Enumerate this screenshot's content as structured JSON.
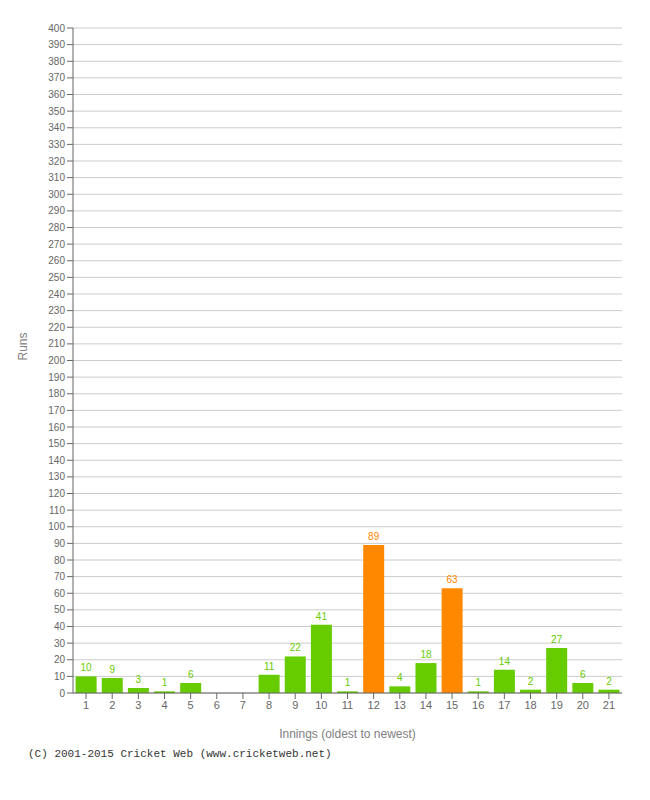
{
  "chart_data": {
    "type": "bar",
    "xlabel": "Innings (oldest to newest)",
    "ylabel": "Runs",
    "categories": [
      "1",
      "2",
      "3",
      "4",
      "5",
      "6",
      "7",
      "8",
      "9",
      "10",
      "11",
      "12",
      "13",
      "14",
      "15",
      "16",
      "17",
      "18",
      "19",
      "20",
      "21"
    ],
    "values": [
      10,
      9,
      3,
      1,
      6,
      0,
      0,
      11,
      22,
      41,
      1,
      89,
      4,
      18,
      63,
      1,
      14,
      2,
      27,
      6,
      2
    ],
    "colors": [
      "#66cc00",
      "#66cc00",
      "#66cc00",
      "#66cc00",
      "#66cc00",
      "#66cc00",
      "#66cc00",
      "#66cc00",
      "#66cc00",
      "#66cc00",
      "#66cc00",
      "#ff8800",
      "#66cc00",
      "#66cc00",
      "#ff8800",
      "#66cc00",
      "#66cc00",
      "#66cc00",
      "#66cc00",
      "#66cc00",
      "#66cc00"
    ],
    "ylim": [
      0,
      400
    ],
    "yticks": [
      0,
      10,
      20,
      30,
      40,
      50,
      60,
      70,
      80,
      90,
      100,
      110,
      120,
      130,
      140,
      150,
      160,
      170,
      180,
      190,
      200,
      210,
      220,
      230,
      240,
      250,
      260,
      270,
      280,
      290,
      300,
      310,
      320,
      330,
      340,
      350,
      360,
      370,
      380,
      390,
      400
    ],
    "grid": true,
    "data_labels": true,
    "annotations": [
      "(C) 2001-2015 Cricket Web (www.cricketweb.net)"
    ]
  }
}
